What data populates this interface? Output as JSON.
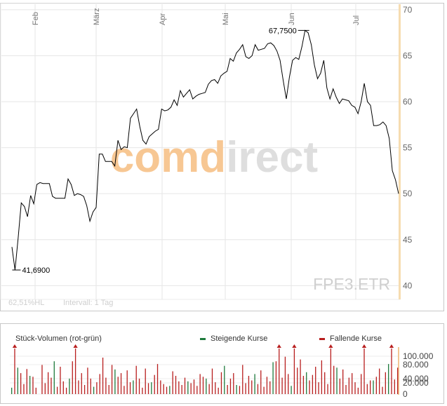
{
  "chart_data": [
    {
      "type": "line",
      "x_tick_labels": [
        "Feb",
        "März",
        "Apr",
        "Mai",
        "Jun",
        "Jul"
      ],
      "y_ticks": [
        40,
        45,
        50,
        55,
        60,
        65,
        70
      ],
      "ylim": [
        38.5,
        70.6
      ],
      "grid": true,
      "series": [
        {
          "values": [
            44.2,
            41.7,
            45.2,
            49.0,
            48.6,
            47.5,
            49.8,
            48.9,
            51.0,
            51.2,
            51.1,
            51.1,
            51.1,
            49.7,
            49.5,
            49.5,
            49.5,
            49.5,
            51.6,
            51.0,
            49.8,
            50.0,
            49.9,
            49.7,
            48.7,
            47.0,
            48.0,
            48.5,
            54.3,
            54.3,
            53.5,
            53.5,
            53.5,
            53.0,
            55.8,
            54.8,
            55.1,
            55.0,
            58.2,
            58.7,
            59.2,
            57.3,
            55.8,
            55.4,
            56.2,
            56.5,
            56.8,
            57.0,
            59.2,
            59.0,
            59.1,
            59.4,
            60.2,
            59.6,
            61.2,
            60.5,
            60.9,
            61.3,
            60.3,
            60.6,
            60.8,
            60.9,
            61.0,
            61.9,
            62.3,
            62.4,
            62.0,
            62.8,
            63.1,
            63.3,
            64.7,
            64.4,
            65.3,
            65.7,
            66.2,
            64.9,
            64.7,
            65.0,
            66.2,
            65.6,
            65.7,
            65.8,
            66.3,
            66.4,
            66.1,
            65.5,
            64.5,
            62.3,
            60.3,
            62.7,
            64.5,
            64.8,
            64.6,
            66.0,
            67.75,
            67.5,
            66.2,
            64.0,
            62.5,
            63.1,
            64.5,
            61.5,
            60.3,
            61.4,
            60.5,
            59.8,
            60.3,
            60.2,
            60.1,
            59.6,
            59.4,
            58.7,
            60.0,
            62.0,
            60.0,
            59.6,
            57.4,
            57.4,
            57.5,
            57.8,
            57.4,
            56.0,
            52.5,
            51.5,
            50.0
          ]
        }
      ],
      "annotations": [
        "67,7500",
        "41,6900"
      ],
      "info_text": [
        "62,51%HL",
        "Intervall: 1 Tag"
      ],
      "symbol": "FPE3.ETR",
      "watermark": "comdirect",
      "colors": {
        "line": "#000000",
        "grid": "#e4e4e4",
        "price_marker": "#f6dcb0",
        "watermark_orange": "#f7c793",
        "watermark_gray": "#dedede"
      }
    },
    {
      "type": "bar",
      "title": "Stück-Volumen (rot-grün)",
      "legend": [
        "Steigende Kurse",
        "Fallende Kurse"
      ],
      "y_tick_labels": [
        "0",
        "20.000",
        "40.000",
        "80.000",
        "100.000"
      ],
      "ylim": [
        0,
        100000
      ],
      "colors": {
        "up": "#1e7a3c",
        "down": "#b81e1e"
      },
      "series": [
        {
          "name": "Steigende Kurse",
          "values": [
            14000,
            0,
            58000,
            0,
            0,
            0,
            40000,
            0,
            0,
            0,
            0,
            0,
            0,
            0,
            72000,
            0,
            0,
            0,
            0,
            34000,
            0,
            0,
            0,
            0,
            0,
            0,
            0,
            16000,
            0,
            0,
            0,
            0,
            0,
            0,
            54000,
            0,
            0,
            0,
            0,
            0,
            30000,
            0,
            0,
            0,
            0,
            0,
            26000,
            0,
            0,
            0,
            0,
            0,
            18000,
            0,
            0,
            0,
            0,
            0,
            28000,
            0,
            0,
            0,
            0,
            0,
            34000,
            0,
            0,
            0,
            0,
            0,
            62000,
            0,
            0,
            0,
            20000,
            0,
            0,
            0,
            0,
            0,
            44000,
            0,
            0,
            0,
            0,
            0,
            70000,
            0,
            0,
            0,
            0,
            0,
            18000,
            0,
            0,
            0,
            0,
            48000,
            0,
            0,
            0,
            0,
            0,
            0,
            0,
            0,
            0,
            58000,
            0,
            0,
            0,
            0,
            0,
            0,
            0,
            0,
            0,
            0,
            0,
            30000,
            0,
            0,
            0,
            0,
            66000,
            0,
            0,
            0
          ]
        },
        {
          "name": "Fallende Kurse",
          "values": [
            0,
            100000,
            0,
            46000,
            22000,
            55000,
            0,
            38000,
            14000,
            0,
            64000,
            24000,
            48000,
            36000,
            0,
            16000,
            60000,
            28000,
            14000,
            0,
            72000,
            100000,
            30000,
            46000,
            20000,
            58000,
            34000,
            0,
            26000,
            44000,
            80000,
            36000,
            20000,
            64000,
            0,
            38000,
            46000,
            18000,
            52000,
            26000,
            0,
            62000,
            34000,
            14000,
            56000,
            24000,
            0,
            42000,
            66000,
            30000,
            22000,
            16000,
            0,
            50000,
            40000,
            28000,
            20000,
            36000,
            0,
            24000,
            32000,
            18000,
            44000,
            38000,
            0,
            22000,
            56000,
            26000,
            14000,
            48000,
            0,
            20000,
            34000,
            46000,
            0,
            18000,
            64000,
            24000,
            40000,
            30000,
            0,
            22000,
            52000,
            16000,
            38000,
            28000,
            0,
            72000,
            100000,
            36000,
            82000,
            44000,
            0,
            100000,
            58000,
            76000,
            40000,
            0,
            30000,
            42000,
            60000,
            26000,
            74000,
            48000,
            22000,
            100000,
            62000,
            0,
            34000,
            54000,
            20000,
            36000,
            46000,
            26000,
            14000,
            44000,
            100000,
            22000,
            30000,
            0,
            38000,
            56000,
            16000,
            48000,
            0,
            100000,
            32000,
            58000
          ]
        }
      ]
    }
  ]
}
